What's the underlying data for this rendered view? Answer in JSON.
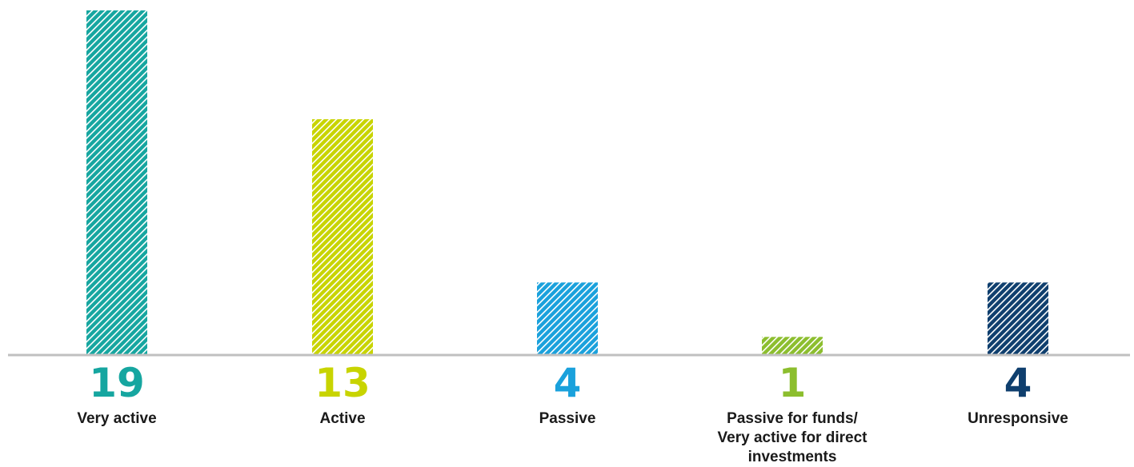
{
  "chart_data": {
    "type": "bar",
    "categories": [
      [
        "Very active"
      ],
      [
        "Active"
      ],
      [
        "Passive"
      ],
      [
        "Passive for funds/",
        "Very active for direct",
        "investments"
      ],
      [
        "Unresponsive"
      ]
    ],
    "values": [
      19,
      13,
      4,
      1,
      4
    ],
    "value_labels": [
      "19",
      "13",
      "4",
      "1",
      "4"
    ],
    "colors": [
      "#16a6a0",
      "#c8d400",
      "#1aa1dc",
      "#8cbe2e",
      "#0f3f6e"
    ],
    "bar_pattern": "diagonal-hatch",
    "title": "",
    "xlabel": "",
    "ylabel": "",
    "ylim": [
      0,
      19
    ],
    "grid": false,
    "legend": "none",
    "baseline_color": "#c0c0c0"
  }
}
